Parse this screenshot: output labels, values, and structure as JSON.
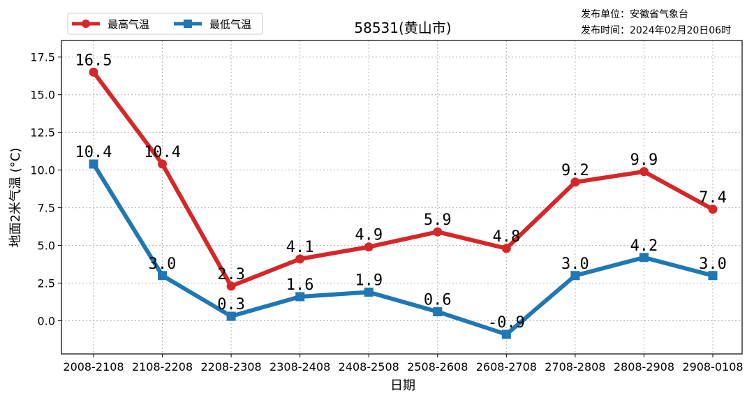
{
  "chart_data": {
    "type": "line",
    "title": "58531(黄山市)",
    "xlabel": "日期",
    "ylabel": "地面2米气温 (°C)",
    "categories": [
      "2008-2108",
      "2108-2208",
      "2208-2308",
      "2308-2408",
      "2408-2508",
      "2508-2608",
      "2608-2708",
      "2708-2808",
      "2808-2908",
      "2908-0108"
    ],
    "series": [
      {
        "name": "最高气温",
        "color": "#d62728",
        "marker": "circle",
        "values": [
          16.5,
          10.4,
          2.3,
          4.1,
          4.9,
          5.9,
          4.8,
          9.2,
          9.9,
          7.4
        ],
        "labels": [
          "16.5",
          "10.4",
          "2.3",
          "4.1",
          "4.9",
          "5.9",
          "4.8",
          "9.2",
          "9.9",
          "7.4"
        ]
      },
      {
        "name": "最低气温",
        "color": "#1f77b4",
        "marker": "square",
        "values": [
          10.4,
          3.0,
          0.3,
          1.6,
          1.9,
          0.6,
          -0.9,
          3.0,
          4.2,
          3.0
        ],
        "labels": [
          "10.4",
          "3.0",
          "0.3",
          "1.6",
          "1.9",
          "0.6",
          "-0.9",
          "3.0",
          "4.2",
          "3.0"
        ]
      }
    ],
    "yticks": [
      0.0,
      2.5,
      5.0,
      7.5,
      10.0,
      12.5,
      15.0,
      17.5
    ],
    "ytick_labels": [
      "0.0",
      "2.5",
      "5.0",
      "7.5",
      "10.0",
      "12.5",
      "15.0",
      "17.5"
    ],
    "ylim": [
      -2.2,
      18.6
    ],
    "grid": true,
    "legend_position": "top-left"
  },
  "info": {
    "line1": "发布单位：安徽省气象台",
    "line2": "发布时间：2024年02月20日06时"
  }
}
